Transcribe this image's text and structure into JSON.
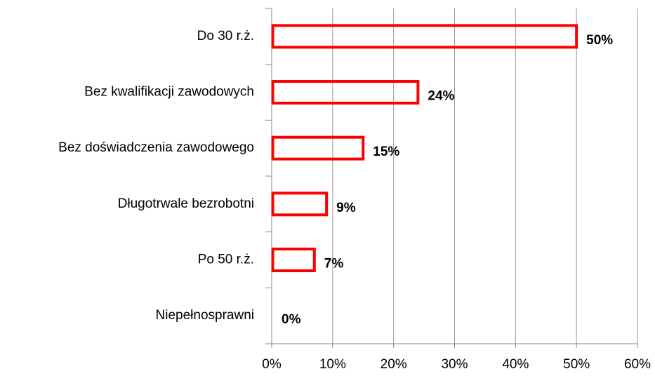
{
  "chart_data": {
    "type": "bar",
    "orientation": "horizontal",
    "categories": [
      "Do 30 r.ż.",
      "Bez kwalifikacji zawodowych",
      "Bez doświadczenia zawodowego",
      "Długotrwale bezrobotni",
      "Po 50 r.ż.",
      "Niepełnosprawni"
    ],
    "values": [
      50,
      24,
      15,
      9,
      7,
      0
    ],
    "value_labels": [
      "50%",
      "24%",
      "15%",
      "9%",
      "7%",
      "0%"
    ],
    "color": "#ff0000",
    "xlim": [
      0,
      60
    ],
    "xticks": [
      {
        "value": 0,
        "label": "0%"
      },
      {
        "value": 10,
        "label": "10%"
      },
      {
        "value": 20,
        "label": "20%"
      },
      {
        "value": 30,
        "label": "30%"
      },
      {
        "value": 40,
        "label": "40%"
      },
      {
        "value": 50,
        "label": "50%"
      },
      {
        "value": 60,
        "label": "60%"
      }
    ],
    "grid": true
  }
}
